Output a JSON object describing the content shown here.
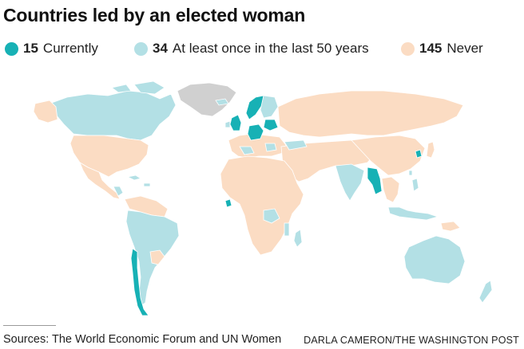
{
  "title": "Countries led by an elected woman",
  "legend": [
    {
      "count": "15",
      "label": "Currently",
      "color": "#17b1b5"
    },
    {
      "count": "34",
      "label": "At least once in the last 50 years",
      "color": "#b3e0e5"
    },
    {
      "count": "145",
      "label": "Never",
      "color": "#fbdcc3"
    }
  ],
  "map": {
    "no_data_color": "#d0d0d0",
    "border_color": "#ffffff"
  },
  "footer": {
    "sources": "Sources: The World Economic Forum and UN Women",
    "credit": "DARLA CAMERON/THE WASHINGTON POST"
  }
}
